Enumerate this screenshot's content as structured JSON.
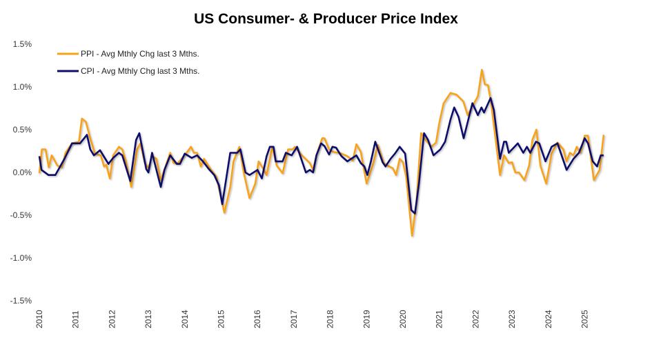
{
  "chart_data": {
    "type": "line",
    "title": "US Consumer- & Producer Price Index",
    "xlabel": "",
    "ylabel": "",
    "ylim": [
      -1.5,
      1.5
    ],
    "xlim": [
      2010,
      2025.6
    ],
    "y_ticks": [
      "1.5%",
      "1.0%",
      "0.5%",
      "0.0%",
      "-0.5%",
      "-1.0%",
      "-1.5%"
    ],
    "y_tick_values": [
      1.5,
      1.0,
      0.5,
      0.0,
      -0.5,
      -1.0,
      -1.5
    ],
    "x_ticks": [
      "2010",
      "2011",
      "2012",
      "2013",
      "2014",
      "2015",
      "2016",
      "2017",
      "2018",
      "2019",
      "2020",
      "2021",
      "2022",
      "2023",
      "2024",
      "2025"
    ],
    "grid": false,
    "legend_position": "top-left",
    "series": [
      {
        "name": "PPI - Avg Mthly Chg last 3 Mths.",
        "color": "#F7A21B",
        "x": [
          2010.0,
          2010.07,
          2010.17,
          2010.26,
          2010.34,
          2010.5,
          2010.62,
          2010.72,
          2010.9,
          2011.09,
          2011.17,
          2011.28,
          2011.4,
          2011.53,
          2011.69,
          2011.78,
          2011.84,
          2011.94,
          2012.03,
          2012.19,
          2012.28,
          2012.38,
          2012.53,
          2012.69,
          2012.78,
          2012.9,
          2013.0,
          2013.1,
          2013.22,
          2013.34,
          2013.6,
          2013.69,
          2013.81,
          2014.03,
          2014.17,
          2014.25,
          2014.34,
          2014.44,
          2014.53,
          2014.69,
          2014.87,
          2015.09,
          2015.25,
          2015.34,
          2015.5,
          2015.62,
          2015.78,
          2015.94,
          2016.03,
          2016.12,
          2016.25,
          2016.41,
          2016.53,
          2016.69,
          2016.84,
          2016.97,
          2017.03,
          2017.22,
          2017.44,
          2017.53,
          2017.62,
          2017.78,
          2017.84,
          2017.97,
          2018.09,
          2018.31,
          2018.47,
          2018.62,
          2018.72,
          2018.84,
          2019.0,
          2019.19,
          2019.31,
          2019.47,
          2019.62,
          2019.72,
          2019.81,
          2019.91,
          2020.0,
          2020.09,
          2020.25,
          2020.37,
          2020.5,
          2020.59,
          2020.78,
          2020.91,
          2021.0,
          2021.12,
          2021.31,
          2021.47,
          2021.66,
          2021.78,
          2021.97,
          2022.06,
          2022.17,
          2022.25,
          2022.34,
          2022.42,
          2022.56,
          2022.67,
          2022.78,
          2022.91,
          2023.0,
          2023.09,
          2023.19,
          2023.34,
          2023.47,
          2023.56,
          2023.67,
          2023.78,
          2023.94,
          2024.09,
          2024.25,
          2024.41,
          2024.5,
          2024.59,
          2024.69,
          2024.78,
          2024.88,
          2025.0,
          2025.09,
          2025.25,
          2025.41,
          2025.52
        ],
        "values": [
          -0.01,
          0.27,
          0.27,
          0.06,
          0.2,
          0.08,
          0.06,
          0.23,
          0.34,
          0.36,
          0.63,
          0.59,
          0.4,
          0.22,
          0.2,
          0.07,
          0.09,
          -0.07,
          0.2,
          0.3,
          0.27,
          0.13,
          -0.17,
          0.27,
          0.34,
          0.11,
          0.05,
          0.19,
          0.16,
          -0.09,
          0.23,
          0.11,
          0.11,
          0.22,
          0.3,
          0.23,
          0.23,
          0.07,
          0.16,
          0.05,
          -0.05,
          -0.47,
          -0.17,
          0.13,
          0.3,
          0.0,
          -0.3,
          -0.13,
          0.13,
          0.07,
          -0.03,
          0.3,
          0.08,
          -0.01,
          0.27,
          0.27,
          0.3,
          0.2,
          0.11,
          0.03,
          0.2,
          0.4,
          0.4,
          0.27,
          0.24,
          0.22,
          0.19,
          0.14,
          0.33,
          0.24,
          -0.13,
          0.11,
          0.32,
          0.11,
          0.07,
          0.05,
          -0.03,
          0.16,
          0.12,
          -0.05,
          -0.74,
          -0.35,
          0.46,
          0.4,
          0.3,
          0.35,
          0.58,
          0.81,
          0.93,
          0.91,
          0.83,
          0.67,
          0.82,
          0.89,
          1.2,
          1.03,
          1.02,
          0.83,
          0.35,
          -0.03,
          0.2,
          0.11,
          0.12,
          0.0,
          0.0,
          -0.09,
          0.08,
          0.38,
          0.5,
          0.08,
          -0.13,
          0.22,
          0.35,
          0.27,
          0.13,
          0.23,
          0.2,
          0.3,
          0.23,
          0.43,
          0.43,
          -0.09,
          0.03,
          0.44
        ]
      },
      {
        "name": "CPI - Avg Mthly Chg last 3 Mths.",
        "color": "#0D0D6B",
        "x": [
          2010.0,
          2010.06,
          2010.25,
          2010.44,
          2010.69,
          2010.9,
          2011.12,
          2011.31,
          2011.4,
          2011.5,
          2011.67,
          2011.9,
          2012.03,
          2012.19,
          2012.28,
          2012.5,
          2012.66,
          2012.75,
          2012.94,
          2013.0,
          2013.1,
          2013.34,
          2013.44,
          2013.6,
          2013.78,
          2013.87,
          2014.0,
          2014.19,
          2014.34,
          2014.5,
          2014.66,
          2014.81,
          2014.94,
          2015.03,
          2015.25,
          2015.44,
          2015.53,
          2015.67,
          2015.78,
          2016.0,
          2016.12,
          2016.25,
          2016.34,
          2016.44,
          2016.5,
          2016.69,
          2016.78,
          2016.94,
          2017.09,
          2017.33,
          2017.44,
          2017.53,
          2017.62,
          2017.75,
          2017.84,
          2017.97,
          2018.06,
          2018.16,
          2018.31,
          2018.47,
          2018.72,
          2018.84,
          2018.94,
          2019.02,
          2019.12,
          2019.24,
          2019.44,
          2019.52,
          2019.66,
          2019.78,
          2019.91,
          2020.06,
          2020.23,
          2020.33,
          2020.44,
          2020.58,
          2020.69,
          2020.84,
          2021.03,
          2021.16,
          2021.31,
          2021.41,
          2021.53,
          2021.67,
          2021.91,
          2022.06,
          2022.16,
          2022.23,
          2022.41,
          2022.5,
          2022.67,
          2022.78,
          2022.84,
          2022.91,
          2023.16,
          2023.31,
          2023.41,
          2023.5,
          2023.66,
          2023.75,
          2023.92,
          2024.09,
          2024.25,
          2024.5,
          2024.69,
          2024.84,
          2025.0,
          2025.09,
          2025.22,
          2025.34,
          2025.44,
          2025.52
        ],
        "values": [
          0.19,
          0.03,
          -0.03,
          -0.03,
          0.16,
          0.34,
          0.34,
          0.44,
          0.27,
          0.2,
          0.26,
          0.1,
          0.17,
          0.23,
          0.2,
          -0.1,
          0.38,
          0.46,
          0.04,
          0.0,
          0.23,
          -0.17,
          0.03,
          0.2,
          0.1,
          0.1,
          0.22,
          0.17,
          0.2,
          0.13,
          0.04,
          -0.03,
          -0.15,
          -0.37,
          0.23,
          0.23,
          0.27,
          0.0,
          -0.03,
          0.03,
          -0.07,
          0.19,
          0.3,
          0.3,
          0.13,
          0.13,
          0.23,
          0.2,
          0.3,
          0.0,
          0.03,
          0.0,
          0.2,
          0.34,
          0.31,
          0.21,
          0.3,
          0.29,
          0.19,
          0.13,
          0.2,
          0.11,
          0.07,
          -0.03,
          0.13,
          0.36,
          0.12,
          0.07,
          0.16,
          0.22,
          0.3,
          0.22,
          -0.44,
          -0.48,
          -0.13,
          0.46,
          0.38,
          0.2,
          0.27,
          0.36,
          0.62,
          0.76,
          0.65,
          0.4,
          0.81,
          0.67,
          0.76,
          0.7,
          0.87,
          0.73,
          0.16,
          0.36,
          0.36,
          0.23,
          0.34,
          0.23,
          0.3,
          0.23,
          0.36,
          0.34,
          0.13,
          0.3,
          0.34,
          0.03,
          0.16,
          0.23,
          0.4,
          0.34,
          0.13,
          0.07,
          0.2,
          0.2
        ]
      }
    ]
  }
}
